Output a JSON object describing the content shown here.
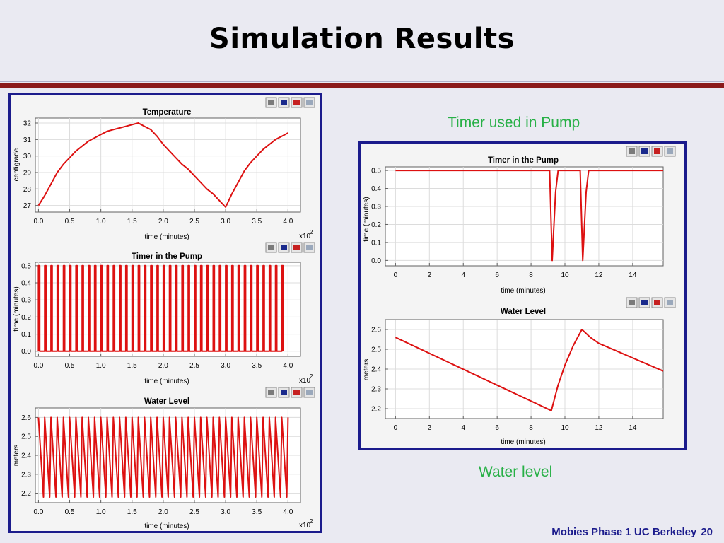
{
  "slide": {
    "title": "Simulation Results",
    "annotation_timer": "Timer used in Pump",
    "annotation_water": "Water level",
    "footer": "Mobies Phase 1 UC Berkeley",
    "page_number": "20"
  },
  "colors": {
    "line": "#dd1111",
    "frame": "#1b1b8c",
    "annotation": "#27b046",
    "accent_bar": "#8b1a1a"
  },
  "toolbar_icons": [
    "print-icon",
    "reset-axes-icon",
    "fill-icon",
    "zoom-fit-icon"
  ],
  "chart_data": [
    {
      "type": "line",
      "title": "Temperature",
      "xlabel": "time (minutes)",
      "ylabel": "centigrade",
      "x_multiplier": "x10",
      "x_multiplier_exp": "2",
      "xlim": [
        -0.05,
        4.2
      ],
      "ylim": [
        26.6,
        32.3
      ],
      "xticks": [
        "0.0",
        "0.5",
        "1.0",
        "1.5",
        "2.0",
        "2.5",
        "3.0",
        "3.5",
        "4.0"
      ],
      "yticks": [
        "27",
        "28",
        "29",
        "30",
        "31",
        "32"
      ],
      "grid": true,
      "series": [
        {
          "x": [
            0.0,
            0.1,
            0.2,
            0.3,
            0.4,
            0.5,
            0.6,
            0.7,
            0.8,
            0.9,
            1.0,
            1.1,
            1.2,
            1.3,
            1.4,
            1.5,
            1.6,
            1.7,
            1.8,
            1.9,
            2.0,
            2.1,
            2.2,
            2.3,
            2.4,
            2.5,
            2.6,
            2.7,
            2.8,
            2.9,
            3.0,
            3.1,
            3.2,
            3.3,
            3.4,
            3.5,
            3.6,
            3.7,
            3.8,
            3.9,
            4.0
          ],
          "y": [
            27.0,
            27.6,
            28.3,
            29.0,
            29.5,
            29.9,
            30.3,
            30.6,
            30.9,
            31.1,
            31.3,
            31.5,
            31.6,
            31.7,
            31.8,
            31.9,
            32.0,
            31.8,
            31.6,
            31.2,
            30.7,
            30.3,
            29.9,
            29.5,
            29.2,
            28.8,
            28.4,
            28.0,
            27.7,
            27.3,
            26.9,
            27.7,
            28.4,
            29.1,
            29.6,
            30.0,
            30.4,
            30.7,
            31.0,
            31.2,
            31.4
          ]
        }
      ]
    },
    {
      "type": "line",
      "title": "Timer in the Pump",
      "xlabel": "time (minutes)",
      "ylabel": "time (minutes)",
      "x_multiplier": "x10",
      "x_multiplier_exp": "2",
      "xlim": [
        -0.05,
        4.2
      ],
      "ylim": [
        -0.03,
        0.52
      ],
      "xticks": [
        "0.0",
        "0.5",
        "1.0",
        "1.5",
        "2.0",
        "2.5",
        "3.0",
        "3.5",
        "4.0"
      ],
      "yticks": [
        "0.0",
        "0.1",
        "0.2",
        "0.3",
        "0.4",
        "0.5"
      ],
      "grid": true,
      "pulse_period": 0.1,
      "pulse_width": 0.02,
      "range": [
        0.0,
        4.0
      ],
      "high": 0.5,
      "low": 0.0
    },
    {
      "type": "line",
      "title": "Water Level",
      "xlabel": "time (minutes)",
      "ylabel": "meters",
      "x_multiplier": "x10",
      "x_multiplier_exp": "2",
      "xlim": [
        -0.05,
        4.2
      ],
      "ylim": [
        2.15,
        2.65
      ],
      "xticks": [
        "0.0",
        "0.5",
        "1.0",
        "1.5",
        "2.0",
        "2.5",
        "3.0",
        "3.5",
        "4.0"
      ],
      "yticks": [
        "2.2",
        "2.3",
        "2.4",
        "2.5",
        "2.6"
      ],
      "grid": true,
      "wave_period": 0.1,
      "rise_time": 0.02,
      "range": [
        0.0,
        4.0
      ],
      "peak": 2.6,
      "trough": 2.18
    },
    {
      "type": "line",
      "title": "Timer in the Pump",
      "xlabel": "time (minutes)",
      "ylabel": "time (minutes)",
      "xlim": [
        -0.6,
        15.8
      ],
      "ylim": [
        -0.03,
        0.52
      ],
      "xticks": [
        "0",
        "2",
        "4",
        "6",
        "8",
        "10",
        "12",
        "14"
      ],
      "yticks": [
        "0.0",
        "0.1",
        "0.2",
        "0.3",
        "0.4",
        "0.5"
      ],
      "grid": true,
      "series": [
        {
          "x": [
            0.0,
            9.1,
            9.25,
            9.45,
            9.6,
            10.9,
            11.05,
            11.25,
            11.4,
            15.8
          ],
          "y": [
            0.5,
            0.5,
            0.0,
            0.38,
            0.5,
            0.5,
            0.0,
            0.38,
            0.5,
            0.5
          ]
        }
      ]
    },
    {
      "type": "line",
      "title": "Water Level",
      "xlabel": "time (minutes)",
      "ylabel": "meters",
      "xlim": [
        -0.6,
        15.8
      ],
      "ylim": [
        2.15,
        2.65
      ],
      "xticks": [
        "0",
        "2",
        "4",
        "6",
        "8",
        "10",
        "12",
        "14"
      ],
      "yticks": [
        "2.2",
        "2.3",
        "2.4",
        "2.5",
        "2.6"
      ],
      "grid": true,
      "series": [
        {
          "x": [
            0.0,
            9.2,
            9.6,
            10.0,
            10.5,
            11.0,
            11.5,
            12.0,
            15.8
          ],
          "y": [
            2.56,
            2.19,
            2.32,
            2.42,
            2.52,
            2.6,
            2.56,
            2.53,
            2.39
          ]
        }
      ]
    }
  ]
}
